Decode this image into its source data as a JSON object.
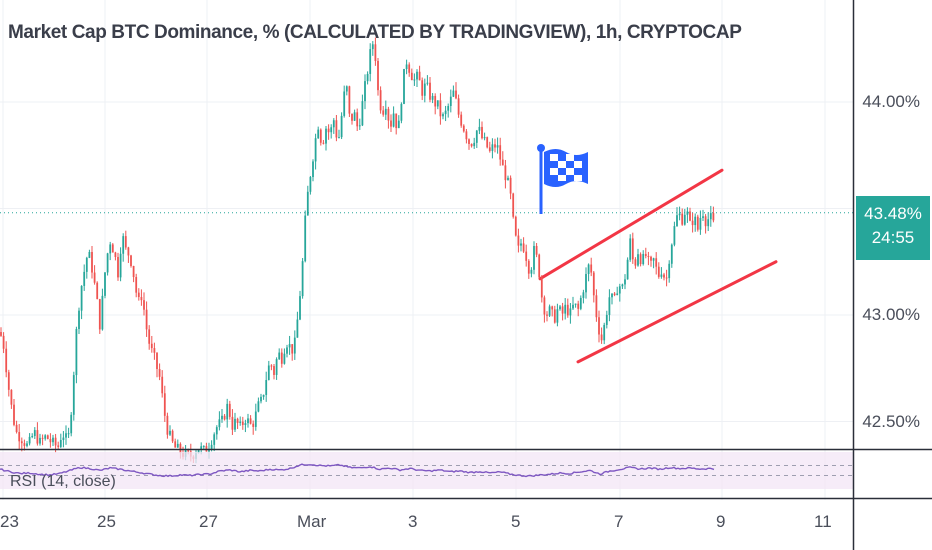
{
  "chart_data": {
    "type": "candlestick",
    "title": "Market Cap BTC Dominance, % (CALCULATED BY TRADINGVIEW), 1h, CRYPTOCAP",
    "xlabel": "",
    "ylabel": "",
    "interval": "1h",
    "ylim": [
      42.35,
      44.4
    ],
    "y_ticks": [
      "44.00%",
      "43.00%",
      "42.50%"
    ],
    "x_ticks": [
      "23",
      "25",
      "27",
      "Mar",
      "3",
      "5",
      "7",
      "9",
      "11"
    ],
    "grid": true,
    "last_price": "43.48%",
    "countdown": "24:55",
    "up_color": "#26a69a",
    "down_color": "#ef5350",
    "trend_color": "#f23645",
    "rsi_color": "#7e57c2",
    "close_path": [
      [
        0,
        42.92
      ],
      [
        4,
        42.85
      ],
      [
        8,
        42.68
      ],
      [
        12,
        42.55
      ],
      [
        16,
        42.45
      ],
      [
        22,
        42.42
      ],
      [
        28,
        42.38
      ],
      [
        34,
        42.45
      ],
      [
        40,
        42.4
      ],
      [
        46,
        42.43
      ],
      [
        52,
        42.4
      ],
      [
        58,
        42.38
      ],
      [
        62,
        42.45
      ],
      [
        68,
        42.4
      ],
      [
        72,
        42.6
      ],
      [
        76,
        42.9
      ],
      [
        80,
        43.1
      ],
      [
        84,
        43.2
      ],
      [
        88,
        43.3
      ],
      [
        92,
        43.22
      ],
      [
        96,
        43.1
      ],
      [
        100,
        42.95
      ],
      [
        106,
        43.25
      ],
      [
        110,
        43.35
      ],
      [
        114,
        43.3
      ],
      [
        118,
        43.2
      ],
      [
        122,
        43.38
      ],
      [
        126,
        43.3
      ],
      [
        130,
        43.28
      ],
      [
        134,
        43.18
      ],
      [
        138,
        43.05
      ],
      [
        142,
        43.1
      ],
      [
        146,
        42.95
      ],
      [
        150,
        42.85
      ],
      [
        154,
        42.8
      ],
      [
        160,
        42.7
      ],
      [
        164,
        42.55
      ],
      [
        168,
        42.45
      ],
      [
        174,
        42.38
      ],
      [
        180,
        42.36
      ],
      [
        186,
        42.34
      ],
      [
        192,
        42.34
      ],
      [
        198,
        42.38
      ],
      [
        204,
        42.36
      ],
      [
        210,
        42.4
      ],
      [
        216,
        42.47
      ],
      [
        222,
        42.5
      ],
      [
        228,
        42.58
      ],
      [
        232,
        42.48
      ],
      [
        236,
        42.5
      ],
      [
        240,
        42.47
      ],
      [
        246,
        42.52
      ],
      [
        250,
        42.48
      ],
      [
        254,
        42.5
      ],
      [
        258,
        42.57
      ],
      [
        262,
        42.6
      ],
      [
        266,
        42.7
      ],
      [
        270,
        42.78
      ],
      [
        274,
        42.73
      ],
      [
        278,
        42.82
      ],
      [
        282,
        42.8
      ],
      [
        286,
        42.88
      ],
      [
        290,
        42.85
      ],
      [
        294,
        42.83
      ],
      [
        298,
        43.0
      ],
      [
        302,
        43.2
      ],
      [
        306,
        43.5
      ],
      [
        310,
        43.65
      ],
      [
        314,
        43.78
      ],
      [
        318,
        43.9
      ],
      [
        322,
        43.8
      ],
      [
        326,
        43.88
      ],
      [
        330,
        43.85
      ],
      [
        334,
        43.92
      ],
      [
        338,
        43.8
      ],
      [
        342,
        43.95
      ],
      [
        346,
        44.1
      ],
      [
        350,
        43.9
      ],
      [
        354,
        43.95
      ],
      [
        358,
        43.87
      ],
      [
        362,
        43.98
      ],
      [
        366,
        44.1
      ],
      [
        370,
        44.22
      ],
      [
        374,
        44.3
      ],
      [
        378,
        44.05
      ],
      [
        382,
        43.95
      ],
      [
        386,
        44.0
      ],
      [
        390,
        43.88
      ],
      [
        394,
        43.96
      ],
      [
        398,
        43.85
      ],
      [
        402,
        44.05
      ],
      [
        406,
        44.2
      ],
      [
        410,
        44.15
      ],
      [
        414,
        44.1
      ],
      [
        418,
        44.12
      ],
      [
        422,
        44.05
      ],
      [
        426,
        44.08
      ],
      [
        430,
        44.03
      ],
      [
        434,
        44.0
      ],
      [
        438,
        43.98
      ],
      [
        442,
        43.92
      ],
      [
        446,
        43.95
      ],
      [
        450,
        44.0
      ],
      [
        454,
        44.05
      ],
      [
        458,
        43.95
      ],
      [
        462,
        43.9
      ],
      [
        466,
        43.85
      ],
      [
        470,
        43.8
      ],
      [
        474,
        43.83
      ],
      [
        478,
        43.88
      ],
      [
        482,
        43.83
      ],
      [
        486,
        43.8
      ],
      [
        490,
        43.76
      ],
      [
        494,
        43.8
      ],
      [
        498,
        43.78
      ],
      [
        502,
        43.7
      ],
      [
        506,
        43.65
      ],
      [
        510,
        43.58
      ],
      [
        514,
        43.4
      ],
      [
        518,
        43.3
      ],
      [
        522,
        43.35
      ],
      [
        526,
        43.28
      ],
      [
        530,
        43.2
      ],
      [
        534,
        43.3
      ],
      [
        538,
        43.25
      ],
      [
        542,
        43.08
      ],
      [
        546,
        43.0
      ],
      [
        550,
        43.02
      ],
      [
        554,
        42.98
      ],
      [
        558,
        43.03
      ],
      [
        562,
        43.0
      ],
      [
        566,
        43.04
      ],
      [
        570,
        43.0
      ],
      [
        574,
        43.05
      ],
      [
        578,
        43.02
      ],
      [
        582,
        43.1
      ],
      [
        586,
        43.18
      ],
      [
        590,
        43.25
      ],
      [
        594,
        43.08
      ],
      [
        598,
        42.95
      ],
      [
        602,
        42.88
      ],
      [
        606,
        43.0
      ],
      [
        610,
        43.1
      ],
      [
        614,
        43.05
      ],
      [
        618,
        43.15
      ],
      [
        622,
        43.12
      ],
      [
        626,
        43.2
      ],
      [
        630,
        43.35
      ],
      [
        634,
        43.22
      ],
      [
        638,
        43.3
      ],
      [
        642,
        43.25
      ],
      [
        646,
        43.28
      ],
      [
        650,
        43.22
      ],
      [
        654,
        43.26
      ],
      [
        658,
        43.18
      ],
      [
        662,
        43.22
      ],
      [
        666,
        43.15
      ],
      [
        670,
        43.3
      ],
      [
        674,
        43.4
      ],
      [
        678,
        43.48
      ],
      [
        682,
        43.45
      ],
      [
        686,
        43.5
      ],
      [
        690,
        43.42
      ],
      [
        694,
        43.46
      ],
      [
        698,
        43.4
      ],
      [
        702,
        43.5
      ],
      [
        706,
        43.44
      ],
      [
        710,
        43.46
      ],
      [
        714,
        43.42
      ],
      [
        716,
        43.48
      ]
    ],
    "rsi_path": [
      [
        0,
        55
      ],
      [
        10,
        45
      ],
      [
        20,
        38
      ],
      [
        30,
        40
      ],
      [
        40,
        35
      ],
      [
        50,
        32
      ],
      [
        60,
        38
      ],
      [
        70,
        50
      ],
      [
        80,
        62
      ],
      [
        90,
        58
      ],
      [
        100,
        50
      ],
      [
        110,
        60
      ],
      [
        120,
        55
      ],
      [
        130,
        48
      ],
      [
        140,
        42
      ],
      [
        150,
        35
      ],
      [
        160,
        30
      ],
      [
        170,
        28
      ],
      [
        180,
        32
      ],
      [
        190,
        30
      ],
      [
        200,
        34
      ],
      [
        210,
        36
      ],
      [
        220,
        48
      ],
      [
        230,
        52
      ],
      [
        240,
        45
      ],
      [
        250,
        50
      ],
      [
        260,
        48
      ],
      [
        270,
        55
      ],
      [
        280,
        52
      ],
      [
        290,
        58
      ],
      [
        300,
        72
      ],
      [
        310,
        75
      ],
      [
        320,
        70
      ],
      [
        330,
        68
      ],
      [
        340,
        72
      ],
      [
        350,
        62
      ],
      [
        360,
        60
      ],
      [
        370,
        66
      ],
      [
        380,
        55
      ],
      [
        390,
        60
      ],
      [
        400,
        52
      ],
      [
        410,
        58
      ],
      [
        420,
        50
      ],
      [
        430,
        48
      ],
      [
        440,
        52
      ],
      [
        450,
        45
      ],
      [
        460,
        48
      ],
      [
        470,
        42
      ],
      [
        480,
        46
      ],
      [
        490,
        40
      ],
      [
        500,
        44
      ],
      [
        510,
        36
      ],
      [
        520,
        30
      ],
      [
        530,
        28
      ],
      [
        540,
        32
      ],
      [
        550,
        35
      ],
      [
        560,
        40
      ],
      [
        570,
        38
      ],
      [
        580,
        45
      ],
      [
        590,
        50
      ],
      [
        600,
        36
      ],
      [
        610,
        48
      ],
      [
        620,
        55
      ],
      [
        630,
        62
      ],
      [
        640,
        56
      ],
      [
        650,
        60
      ],
      [
        660,
        55
      ],
      [
        670,
        62
      ],
      [
        680,
        58
      ],
      [
        690,
        60
      ],
      [
        700,
        56
      ],
      [
        710,
        58
      ],
      [
        716,
        55
      ]
    ],
    "rsi_levels": [
      70,
      30
    ],
    "trendlines": [
      {
        "from": [
          540,
          43.17
        ],
        "to": [
          722,
          43.68
        ]
      },
      {
        "from": [
          578,
          42.78
        ],
        "to": [
          776,
          43.25
        ]
      }
    ]
  },
  "rsi": {
    "label": "RSI (14, close)"
  },
  "flag_icon": "checkered-flag-icon"
}
